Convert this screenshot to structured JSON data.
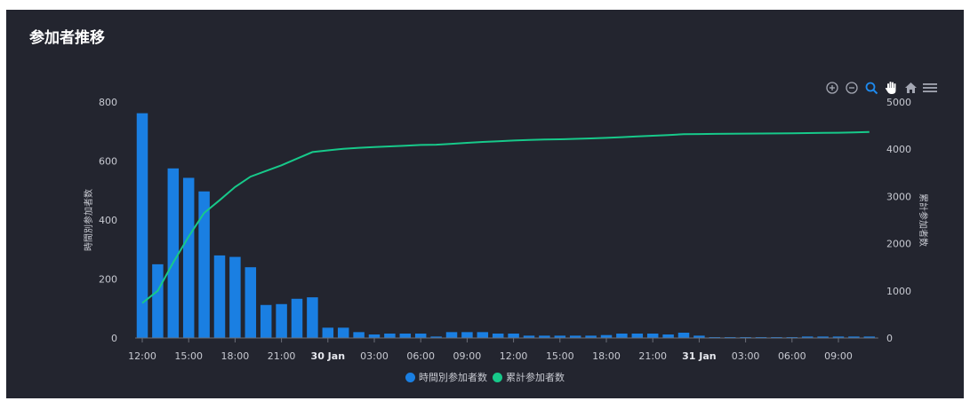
{
  "panel": {
    "title": "参加者推移"
  },
  "toolbar": {
    "icons": [
      "zoom-in-icon",
      "zoom-out-icon",
      "selection-zoom-icon",
      "pan-hand-icon",
      "reset-home-icon",
      "menu-icon"
    ],
    "active_color": "#1e8bf0",
    "inactive_color": "#a4a7b3"
  },
  "colors": {
    "bar": "#1a7fe2",
    "line": "#17c98a",
    "background": "#23252f"
  },
  "chart_data": {
    "type": "bar",
    "y_axis_left": {
      "label": "時間別参加者数",
      "ylim": [
        0,
        800
      ],
      "ticks": [
        "0",
        "200",
        "400",
        "600",
        "800"
      ]
    },
    "y_axis_right": {
      "label": "累計参加者数",
      "ylim": [
        0,
        5000
      ],
      "ticks": [
        "0",
        "1000",
        "2000",
        "3000",
        "4000",
        "5000"
      ]
    },
    "x_ticks": [
      {
        "label": "12:00",
        "i": 0
      },
      {
        "label": "15:00",
        "i": 3
      },
      {
        "label": "18:00",
        "i": 6
      },
      {
        "label": "21:00",
        "i": 9
      },
      {
        "label": "30 Jan",
        "i": 12,
        "bold": true
      },
      {
        "label": "03:00",
        "i": 15
      },
      {
        "label": "06:00",
        "i": 18
      },
      {
        "label": "09:00",
        "i": 21
      },
      {
        "label": "12:00",
        "i": 24
      },
      {
        "label": "15:00",
        "i": 27
      },
      {
        "label": "18:00",
        "i": 30
      },
      {
        "label": "21:00",
        "i": 33
      },
      {
        "label": "31 Jan",
        "i": 36,
        "bold": true
      },
      {
        "label": "03:00",
        "i": 39
      },
      {
        "label": "06:00",
        "i": 42
      },
      {
        "label": "09:00",
        "i": 45
      }
    ],
    "series": [
      {
        "name": "時間別参加者数",
        "type": "bar",
        "axis": "left",
        "values": [
          762,
          250,
          575,
          543,
          497,
          280,
          275,
          240,
          112,
          115,
          133,
          138,
          35,
          35,
          20,
          12,
          15,
          15,
          15,
          5,
          20,
          20,
          20,
          15,
          15,
          8,
          8,
          8,
          8,
          8,
          10,
          15,
          15,
          15,
          12,
          18,
          8,
          3,
          3,
          3,
          3,
          3,
          3,
          5,
          5,
          5,
          5,
          5
        ]
      },
      {
        "name": "累計参加者数",
        "type": "line",
        "axis": "right",
        "values": [
          740,
          1000,
          1600,
          2150,
          2650,
          2920,
          3200,
          3420,
          3540,
          3660,
          3800,
          3940,
          3975,
          4010,
          4030,
          4045,
          4060,
          4075,
          4090,
          4095,
          4115,
          4135,
          4155,
          4170,
          4185,
          4195,
          4205,
          4210,
          4220,
          4230,
          4240,
          4255,
          4270,
          4285,
          4300,
          4318,
          4322,
          4325,
          4327,
          4330,
          4332,
          4335,
          4338,
          4342,
          4346,
          4350,
          4355,
          4365
        ]
      }
    ],
    "legend": {
      "position": "bottom"
    }
  }
}
